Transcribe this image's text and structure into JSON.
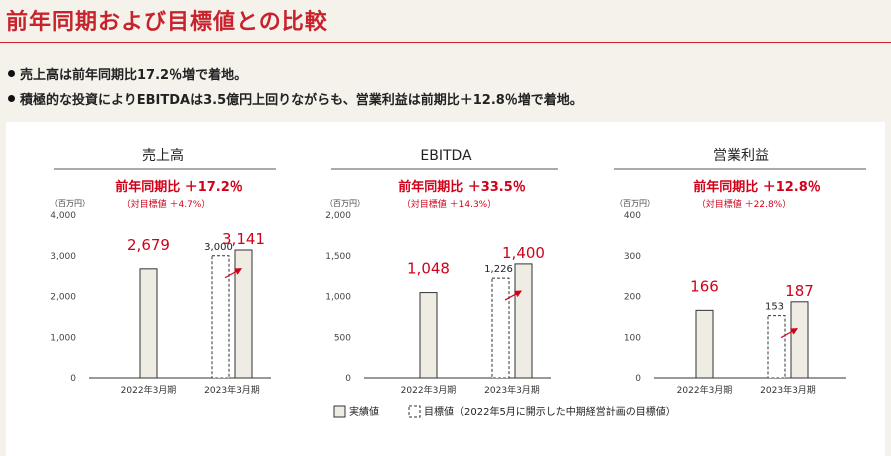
{
  "page": {
    "title": "前年同期および目標値との比較",
    "bullets": [
      "売上高は前年同期比17.2％増で着地。",
      "積極的な投資によりEBITDAは3.5億円上回りながらも、営業利益は前期比＋12.8％増で着地。"
    ]
  },
  "colors": {
    "accent": "#c8232c",
    "value_red": "#d0021b",
    "bar_fill": "#efece3"
  },
  "legend": {
    "actual_label": "実績値",
    "target_label": "目標値（2022年5月に開示した中期経営計画の目標値）"
  },
  "chart_data": [
    {
      "type": "bar",
      "title": "売上高",
      "unit": "（百万円）",
      "growth_label": "前年同期比 ＋17.2％",
      "target_ratio_label": "（対目標値 ＋4.7%）",
      "categories": [
        "2022年3月期",
        "2023年3月期"
      ],
      "ylim": [
        0,
        4000
      ],
      "yticks": [
        "0",
        "1,000",
        "2,000",
        "3,000",
        "4,000"
      ],
      "series": [
        {
          "name": "実績値",
          "values": [
            2679,
            3141
          ],
          "labels": [
            "2,679",
            "3,141"
          ]
        },
        {
          "name": "目標値",
          "values": [
            null,
            3000
          ],
          "labels": [
            "",
            "3,000"
          ]
        }
      ]
    },
    {
      "type": "bar",
      "title": "EBITDA",
      "unit": "（百万円）",
      "growth_label": "前年同期比 ＋33.5％",
      "target_ratio_label": "（対目標値 ＋14.3%）",
      "categories": [
        "2022年3月期",
        "2023年3月期"
      ],
      "ylim": [
        0,
        2000
      ],
      "yticks": [
        "0",
        "500",
        "1,000",
        "1,500",
        "2,000"
      ],
      "series": [
        {
          "name": "実績値",
          "values": [
            1048,
            1400
          ],
          "labels": [
            "1,048",
            "1,400"
          ]
        },
        {
          "name": "目標値",
          "values": [
            null,
            1226
          ],
          "labels": [
            "",
            "1,226"
          ]
        }
      ]
    },
    {
      "type": "bar",
      "title": "営業利益",
      "unit": "（百万円）",
      "growth_label": "前年同期比 ＋12.8％",
      "target_ratio_label": "（対目標値 ＋22.8%）",
      "categories": [
        "2022年3月期",
        "2023年3月期"
      ],
      "ylim": [
        0,
        400
      ],
      "yticks": [
        "0",
        "100",
        "200",
        "300",
        "400"
      ],
      "series": [
        {
          "name": "実績値",
          "values": [
            166,
            187
          ],
          "labels": [
            "166",
            "187"
          ]
        },
        {
          "name": "目標値",
          "values": [
            null,
            153
          ],
          "labels": [
            "",
            "153"
          ]
        }
      ]
    }
  ]
}
